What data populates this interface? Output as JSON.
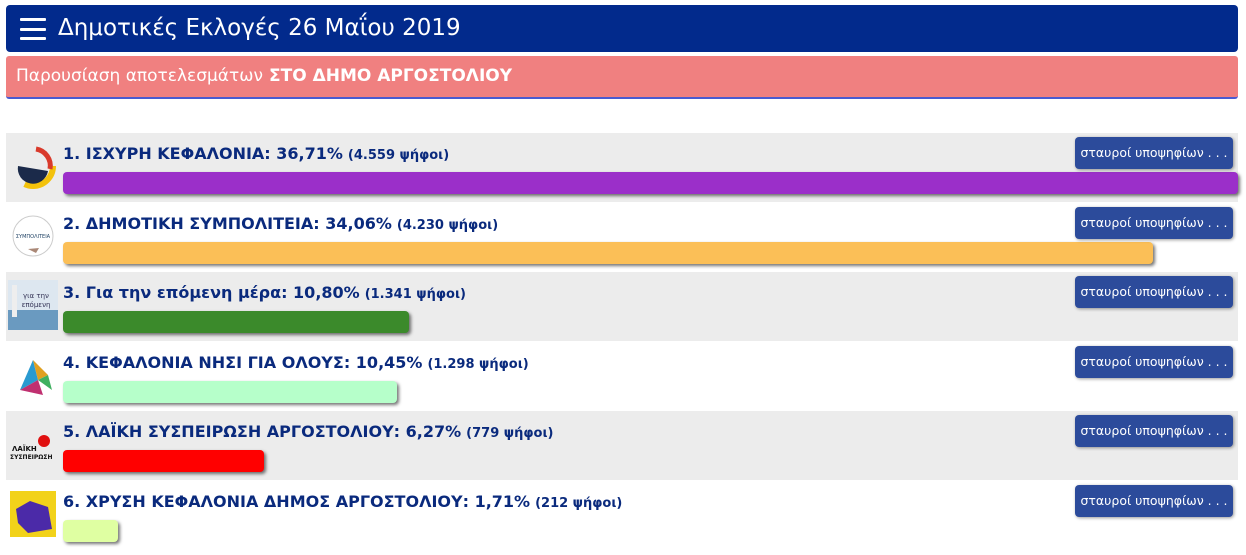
{
  "header": {
    "title": "Δημοτικές Εκλογές 26 Μαΐου 2019"
  },
  "banner": {
    "text": "Παρουσίαση αποτελεσμάτων",
    "highlight": "ΣΤΟ ΔΗΜΟ ΑΡΓΟΣΤΟΛΙΟΥ"
  },
  "button_label": "σταυροί υποψηφίων . . .",
  "parties": [
    {
      "label": "1. ΙΣΧΥΡΗ ΚΕΦΑΛΟΝΙΑ:",
      "percent": 36.71,
      "percent_label": "36,71%",
      "votes_label": "(4.559 ψήφοι)",
      "color": "#9b2fc9"
    },
    {
      "label": "2. ΔΗΜΟΤΙΚΗ ΣΥΜΠΟΛΙΤΕΙΑ:",
      "percent": 34.06,
      "percent_label": "34,06%",
      "votes_label": "(4.230 ψήφοι)",
      "color": "#fbbf57"
    },
    {
      "label": "3. Για την επόμενη μέρα:",
      "percent": 10.8,
      "percent_label": "10,80%",
      "votes_label": "(1.341 ψήφοι)",
      "color": "#3b8a2b"
    },
    {
      "label": "4. ΚΕΦΑΛΟΝΙΑ ΝΗΣΙ ΓΙΑ ΟΛΟΥΣ:",
      "percent": 10.45,
      "percent_label": "10,45%",
      "votes_label": "(1.298 ψήφοι)",
      "color": "#b6ffca"
    },
    {
      "label": "5. ΛΑΪΚΗ ΣΥΣΠΕΙΡΩΣΗ ΑΡΓΟΣΤΟΛΙΟΥ:",
      "percent": 6.27,
      "percent_label": "6,27%",
      "votes_label": "(779 ψήφοι)",
      "color": "#ff0000"
    },
    {
      "label": "6. ΧΡΥΣΗ ΚΕΦΑΛΟΝΙΑ ΔΗΜΟΣ ΑΡΓΟΣΤΟΛΙΟΥ:",
      "percent": 1.71,
      "percent_label": "1,71%",
      "votes_label": "(212 ψήφοι)",
      "color": "#dfffa2"
    }
  ]
}
